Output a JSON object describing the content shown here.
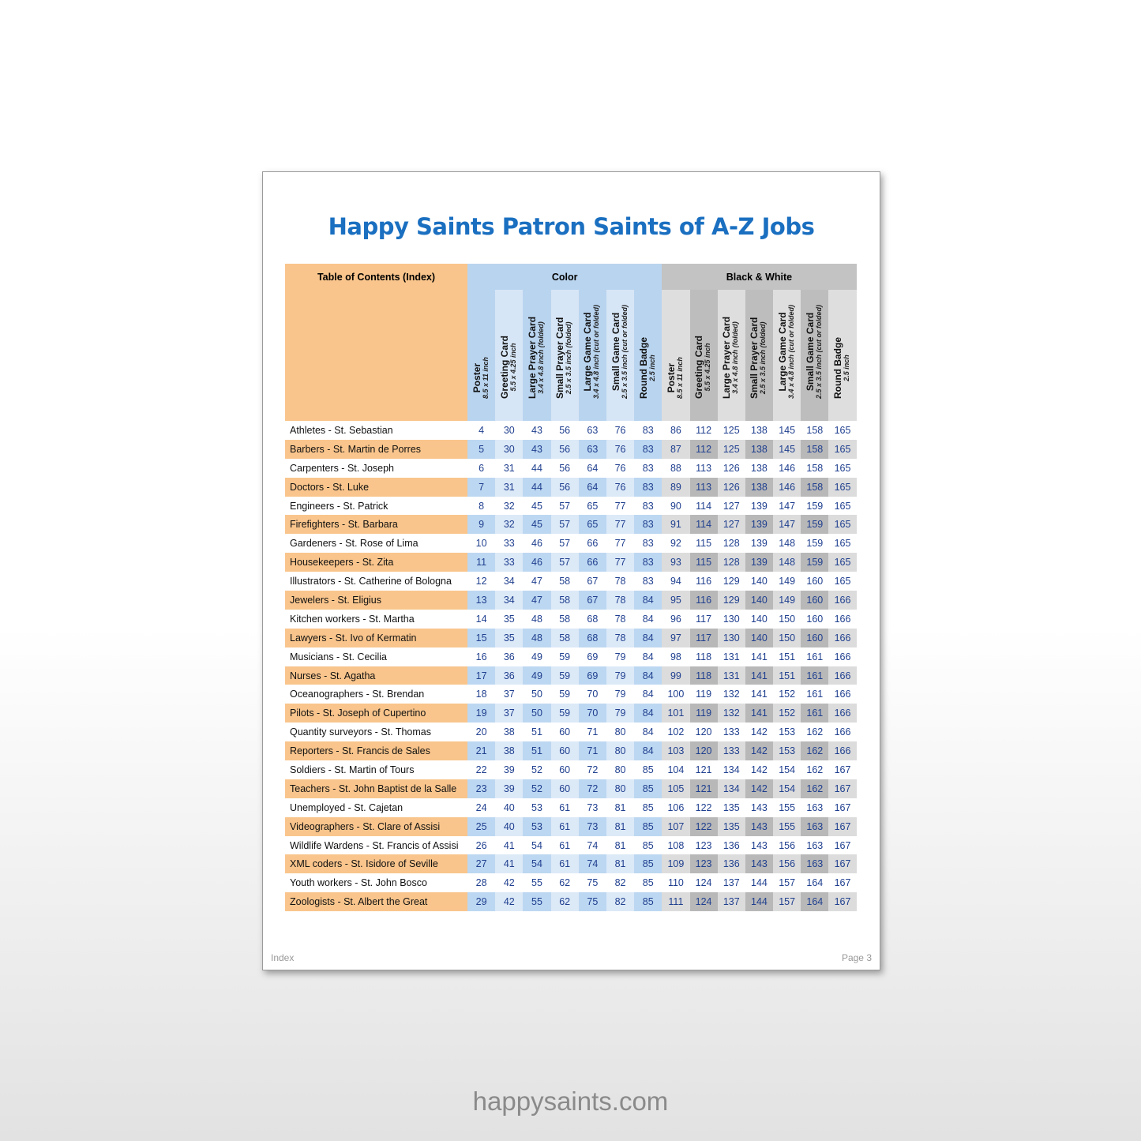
{
  "title": "Happy Saints Patron Saints of A-Z Jobs",
  "table": {
    "index_header": "Table of Contents (Index)",
    "groups": {
      "color": "Color",
      "bw": "Black & White"
    },
    "columns": [
      {
        "label": "Poster",
        "sub": "8.5 x 11 inch"
      },
      {
        "label": "Greeting Card",
        "sub": "5.5 x 4.25 inch"
      },
      {
        "label": "Large Prayer Card",
        "sub": "3.4 x 4.8 inch (folded)"
      },
      {
        "label": "Small Prayer Card",
        "sub": "2.5 x 3.5 inch (folded)"
      },
      {
        "label": "Large Game Card",
        "sub": "3.4 x 4.8 inch (cut or folded)"
      },
      {
        "label": "Small Game Card",
        "sub": "2.5 x 3.5 inch (cut or folded)"
      },
      {
        "label": "Round Badge",
        "sub": "2.5 inch"
      }
    ],
    "rows": [
      {
        "name": "Athletes - St. Sebastian",
        "pages": [
          4,
          30,
          43,
          56,
          63,
          76,
          83,
          86,
          112,
          125,
          138,
          145,
          158,
          165
        ]
      },
      {
        "name": "Barbers - St. Martin de Porres",
        "pages": [
          5,
          30,
          43,
          56,
          63,
          76,
          83,
          87,
          112,
          125,
          138,
          145,
          158,
          165
        ]
      },
      {
        "name": "Carpenters - St. Joseph",
        "pages": [
          6,
          31,
          44,
          56,
          64,
          76,
          83,
          88,
          113,
          126,
          138,
          146,
          158,
          165
        ]
      },
      {
        "name": "Doctors - St. Luke",
        "pages": [
          7,
          31,
          44,
          56,
          64,
          76,
          83,
          89,
          113,
          126,
          138,
          146,
          158,
          165
        ]
      },
      {
        "name": "Engineers - St. Patrick",
        "pages": [
          8,
          32,
          45,
          57,
          65,
          77,
          83,
          90,
          114,
          127,
          139,
          147,
          159,
          165
        ]
      },
      {
        "name": "Firefighters - St. Barbara",
        "pages": [
          9,
          32,
          45,
          57,
          65,
          77,
          83,
          91,
          114,
          127,
          139,
          147,
          159,
          165
        ]
      },
      {
        "name": "Gardeners - St. Rose of Lima",
        "pages": [
          10,
          33,
          46,
          57,
          66,
          77,
          83,
          92,
          115,
          128,
          139,
          148,
          159,
          165
        ]
      },
      {
        "name": "Housekeepers - St. Zita",
        "pages": [
          11,
          33,
          46,
          57,
          66,
          77,
          83,
          93,
          115,
          128,
          139,
          148,
          159,
          165
        ]
      },
      {
        "name": "Illustrators - St. Catherine of Bologna",
        "pages": [
          12,
          34,
          47,
          58,
          67,
          78,
          83,
          94,
          116,
          129,
          140,
          149,
          160,
          165
        ]
      },
      {
        "name": "Jewelers - St. Eligius",
        "pages": [
          13,
          34,
          47,
          58,
          67,
          78,
          84,
          95,
          116,
          129,
          140,
          149,
          160,
          166
        ]
      },
      {
        "name": "Kitchen workers - St. Martha",
        "pages": [
          14,
          35,
          48,
          58,
          68,
          78,
          84,
          96,
          117,
          130,
          140,
          150,
          160,
          166
        ]
      },
      {
        "name": "Lawyers - St. Ivo of Kermatin",
        "pages": [
          15,
          35,
          48,
          58,
          68,
          78,
          84,
          97,
          117,
          130,
          140,
          150,
          160,
          166
        ]
      },
      {
        "name": "Musicians - St. Cecilia",
        "pages": [
          16,
          36,
          49,
          59,
          69,
          79,
          84,
          98,
          118,
          131,
          141,
          151,
          161,
          166
        ]
      },
      {
        "name": "Nurses - St. Agatha",
        "pages": [
          17,
          36,
          49,
          59,
          69,
          79,
          84,
          99,
          118,
          131,
          141,
          151,
          161,
          166
        ]
      },
      {
        "name": "Oceanographers - St. Brendan",
        "pages": [
          18,
          37,
          50,
          59,
          70,
          79,
          84,
          100,
          119,
          132,
          141,
          152,
          161,
          166
        ]
      },
      {
        "name": "Pilots - St. Joseph of Cupertino",
        "pages": [
          19,
          37,
          50,
          59,
          70,
          79,
          84,
          101,
          119,
          132,
          141,
          152,
          161,
          166
        ]
      },
      {
        "name": "Quantity surveyors - St. Thomas",
        "pages": [
          20,
          38,
          51,
          60,
          71,
          80,
          84,
          102,
          120,
          133,
          142,
          153,
          162,
          166
        ]
      },
      {
        "name": "Reporters - St. Francis de Sales",
        "pages": [
          21,
          38,
          51,
          60,
          71,
          80,
          84,
          103,
          120,
          133,
          142,
          153,
          162,
          166
        ]
      },
      {
        "name": "Soldiers - St. Martin of Tours",
        "pages": [
          22,
          39,
          52,
          60,
          72,
          80,
          85,
          104,
          121,
          134,
          142,
          154,
          162,
          167
        ]
      },
      {
        "name": "Teachers - St. John Baptist de la Salle",
        "pages": [
          23,
          39,
          52,
          60,
          72,
          80,
          85,
          105,
          121,
          134,
          142,
          154,
          162,
          167
        ]
      },
      {
        "name": "Unemployed - St. Cajetan",
        "pages": [
          24,
          40,
          53,
          61,
          73,
          81,
          85,
          106,
          122,
          135,
          143,
          155,
          163,
          167
        ]
      },
      {
        "name": "Videographers - St. Clare of Assisi",
        "pages": [
          25,
          40,
          53,
          61,
          73,
          81,
          85,
          107,
          122,
          135,
          143,
          155,
          163,
          167
        ]
      },
      {
        "name": "Wildlife Wardens - St. Francis of Assisi",
        "pages": [
          26,
          41,
          54,
          61,
          74,
          81,
          85,
          108,
          123,
          136,
          143,
          156,
          163,
          167
        ]
      },
      {
        "name": "XML coders - St. Isidore of Seville",
        "pages": [
          27,
          41,
          54,
          61,
          74,
          81,
          85,
          109,
          123,
          136,
          143,
          156,
          163,
          167
        ]
      },
      {
        "name": "Youth workers - St. John Bosco",
        "pages": [
          28,
          42,
          55,
          62,
          75,
          82,
          85,
          110,
          124,
          137,
          144,
          157,
          164,
          167
        ]
      },
      {
        "name": "Zoologists - St. Albert the Great",
        "pages": [
          29,
          42,
          55,
          62,
          75,
          82,
          85,
          111,
          124,
          137,
          144,
          157,
          164,
          167
        ]
      }
    ]
  },
  "footer": {
    "left": "Index",
    "right": "Page 3"
  },
  "website": "happysaints.com",
  "colors": {
    "title": "#1a6fc0",
    "index": "#f9c58c",
    "color_group": "#b9d4ef",
    "bw_group": "#c3c3c3",
    "numbers": "#1f3f8f"
  }
}
